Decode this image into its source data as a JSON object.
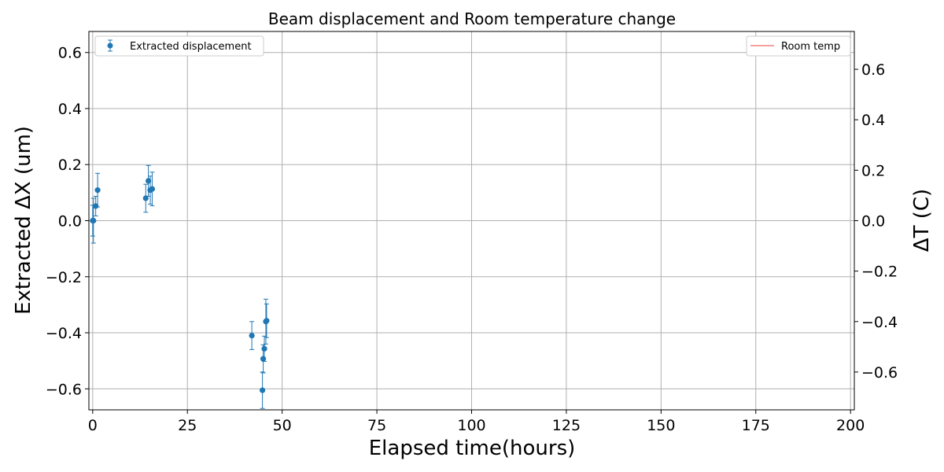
{
  "chart_data": {
    "type": "scatter",
    "title": "Beam displacement and Room temperature change",
    "xlabel": "Elapsed time(hours)",
    "ylabel": "Extracted ΔX (um)",
    "y2label": "ΔT (C)",
    "xlim": [
      -1,
      201
    ],
    "ylim": [
      -0.675,
      0.675
    ],
    "y2lim": [
      -0.75,
      0.75
    ],
    "xticks": [
      0,
      25,
      50,
      75,
      100,
      125,
      150,
      175,
      200
    ],
    "yticks": [
      -0.6,
      -0.4,
      -0.2,
      0.0,
      0.2,
      0.4,
      0.6
    ],
    "y2ticks": [
      -0.6,
      -0.4,
      -0.2,
      0.0,
      0.2,
      0.4,
      0.6
    ],
    "grid": true,
    "series": [
      {
        "name": "Extracted displacement",
        "axis": "left",
        "color": "#1f77b4",
        "points": [
          {
            "x": 0.0,
            "y": 0.0,
            "err": 0.055
          },
          {
            "x": 0.2,
            "y": 0.0,
            "err": 0.08
          },
          {
            "x": 0.8,
            "y": 0.052,
            "err": 0.035
          },
          {
            "x": 1.3,
            "y": 0.109,
            "err": 0.06
          },
          {
            "x": 14.0,
            "y": 0.08,
            "err": 0.05
          },
          {
            "x": 14.7,
            "y": 0.142,
            "err": 0.055
          },
          {
            "x": 15.2,
            "y": 0.109,
            "err": 0.05
          },
          {
            "x": 15.7,
            "y": 0.113,
            "err": 0.06
          },
          {
            "x": 42.0,
            "y": -0.41,
            "err": 0.05
          },
          {
            "x": 44.8,
            "y": -0.605,
            "err": 0.065
          },
          {
            "x": 45.0,
            "y": -0.493,
            "err": 0.05
          },
          {
            "x": 45.3,
            "y": -0.457,
            "err": 0.045
          },
          {
            "x": 45.7,
            "y": -0.36,
            "err": 0.08
          },
          {
            "x": 45.9,
            "y": -0.357,
            "err": 0.06
          }
        ]
      },
      {
        "name": "Room temp",
        "axis": "right",
        "color": "#f08080",
        "points": []
      }
    ]
  }
}
